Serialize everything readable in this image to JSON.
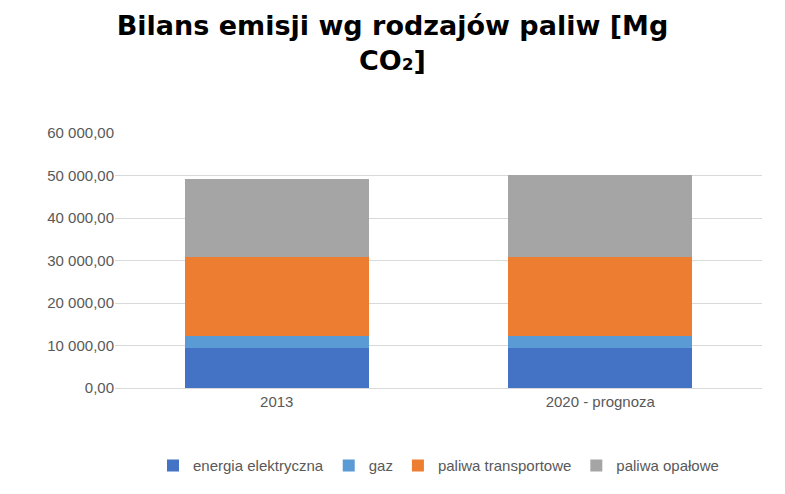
{
  "chart_data": {
    "type": "bar",
    "title": "Bilans emisji wg rodzajów paliw [Mg CO₂]",
    "categories": [
      "2013",
      "2020 - prognoza"
    ],
    "series": [
      {
        "name": "energia elektryczna",
        "color": "#4472c4",
        "values": [
          9300,
          9300
        ]
      },
      {
        "name": "gaz",
        "color": "#5b9bd5",
        "values": [
          3000,
          3000
        ]
      },
      {
        "name": "paliwa transportowe",
        "color": "#ed7d31",
        "values": [
          18500,
          18500
        ]
      },
      {
        "name": "paliwa opałowe",
        "color": "#a5a5a5",
        "values": [
          18400,
          19300
        ]
      }
    ],
    "stacked": true,
    "ylim": [
      0,
      60000
    ],
    "yticks": [
      {
        "value": 0,
        "label": "0,00"
      },
      {
        "value": 10000,
        "label": "10 000,00"
      },
      {
        "value": 20000,
        "label": "20 000,00"
      },
      {
        "value": 30000,
        "label": "30 000,00"
      },
      {
        "value": 40000,
        "label": "40 000,00"
      },
      {
        "value": 50000,
        "label": "50 000,00"
      },
      {
        "value": 60000,
        "label": "60 000,00"
      }
    ],
    "grid": true,
    "legend": "bottom"
  }
}
